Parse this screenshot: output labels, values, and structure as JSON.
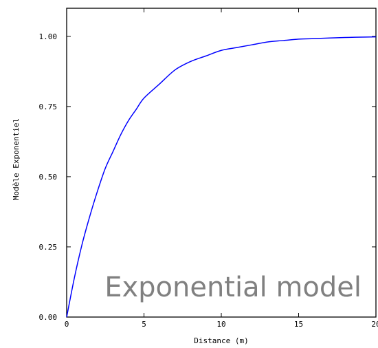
{
  "chart_data": {
    "type": "line",
    "xlabel": "Distance (m)",
    "ylabel": "Modèle Exponentiel",
    "xlim": [
      0,
      20
    ],
    "ylim": [
      0,
      1.1
    ],
    "x_ticks": [
      "0",
      "5",
      "10",
      "15",
      "20"
    ],
    "y_ticks": [
      "0.00",
      "0.25",
      "0.50",
      "0.75",
      "1.00"
    ],
    "grid": false,
    "annotation": "Exponential model",
    "series": [
      {
        "color": "#0000ff",
        "x": [
          0,
          0.5,
          1,
          1.5,
          2,
          2.5,
          3,
          3.5,
          4,
          4.5,
          5,
          6,
          7,
          8,
          9,
          10,
          11,
          12,
          13,
          14,
          15,
          16,
          17,
          18,
          19,
          20
        ],
        "y": [
          0,
          0.14,
          0.26,
          0.36,
          0.45,
          0.53,
          0.59,
          0.65,
          0.7,
          0.74,
          0.78,
          0.83,
          0.88,
          0.91,
          0.93,
          0.95,
          0.96,
          0.97,
          0.98,
          0.985,
          0.99,
          0.992,
          0.994,
          0.996,
          0.997,
          0.998
        ]
      }
    ]
  }
}
